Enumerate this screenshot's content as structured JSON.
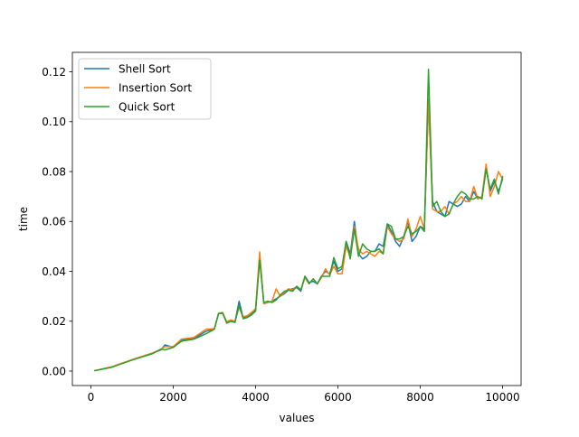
{
  "chart_data": {
    "type": "line",
    "title": "",
    "xlabel": "values",
    "ylabel": "time",
    "xlim": [
      -450,
      10450
    ],
    "ylim": [
      -0.0058,
      0.1278
    ],
    "xticks": [
      0,
      2000,
      4000,
      6000,
      8000,
      10000
    ],
    "xtick_labels": [
      "0",
      "2000",
      "4000",
      "6000",
      "8000",
      "10000"
    ],
    "yticks": [
      0.0,
      0.02,
      0.04,
      0.06,
      0.08,
      0.1,
      0.12
    ],
    "ytick_labels": [
      "0.00",
      "0.02",
      "0.04",
      "0.06",
      "0.08",
      "0.10",
      "0.12"
    ],
    "grid": false,
    "legend": "upper-left",
    "series": [
      {
        "name": "Shell Sort",
        "color": "#1f77b4",
        "x": [
          100,
          500,
          1000,
          1500,
          1700,
          1800,
          2000,
          2200,
          2500,
          2800,
          3000,
          3100,
          3200,
          3300,
          3400,
          3500,
          3600,
          3700,
          3800,
          3900,
          4000,
          4100,
          4200,
          4300,
          4400,
          4500,
          4600,
          4700,
          4800,
          4900,
          5000,
          5100,
          5200,
          5300,
          5400,
          5500,
          5600,
          5700,
          5800,
          5900,
          6000,
          6100,
          6200,
          6300,
          6400,
          6500,
          6600,
          6700,
          6800,
          6900,
          7000,
          7100,
          7200,
          7300,
          7400,
          7500,
          7600,
          7700,
          7800,
          7900,
          8000,
          8100,
          8200,
          8300,
          8400,
          8500,
          8600,
          8700,
          8800,
          8900,
          9000,
          9100,
          9200,
          9300,
          9400,
          9500,
          9600,
          9700,
          9800,
          9900,
          10000
        ],
        "values": [
          0.0002,
          0.0016,
          0.0045,
          0.0072,
          0.0085,
          0.0105,
          0.0095,
          0.0125,
          0.013,
          0.016,
          0.017,
          0.023,
          0.0232,
          0.0195,
          0.02,
          0.0198,
          0.028,
          0.0213,
          0.022,
          0.023,
          0.0245,
          0.046,
          0.027,
          0.0275,
          0.028,
          0.029,
          0.03,
          0.031,
          0.0325,
          0.033,
          0.0335,
          0.032,
          0.038,
          0.0355,
          0.036,
          0.035,
          0.038,
          0.04,
          0.039,
          0.044,
          0.04,
          0.041,
          0.052,
          0.047,
          0.06,
          0.047,
          0.045,
          0.046,
          0.048,
          0.048,
          0.051,
          0.05,
          0.059,
          0.056,
          0.052,
          0.05,
          0.054,
          0.06,
          0.052,
          0.054,
          0.058,
          0.057,
          0.108,
          0.068,
          0.064,
          0.063,
          0.062,
          0.068,
          0.067,
          0.066,
          0.067,
          0.07,
          0.068,
          0.072,
          0.069,
          0.07,
          0.082,
          0.072,
          0.076,
          0.072,
          0.077
        ]
      },
      {
        "name": "Insertion Sort",
        "color": "#ff7f0e",
        "x": [
          100,
          500,
          1000,
          1500,
          1700,
          1800,
          2000,
          2200,
          2500,
          2800,
          3000,
          3100,
          3200,
          3300,
          3400,
          3500,
          3600,
          3700,
          3800,
          3900,
          4000,
          4100,
          4200,
          4300,
          4400,
          4500,
          4600,
          4700,
          4800,
          4900,
          5000,
          5100,
          5200,
          5300,
          5400,
          5500,
          5600,
          5700,
          5800,
          5900,
          6000,
          6100,
          6200,
          6300,
          6400,
          6500,
          6600,
          6700,
          6800,
          6900,
          7000,
          7100,
          7200,
          7300,
          7400,
          7500,
          7600,
          7700,
          7800,
          7900,
          8000,
          8100,
          8200,
          8300,
          8400,
          8500,
          8600,
          8700,
          8800,
          8900,
          9000,
          9100,
          9200,
          9300,
          9400,
          9500,
          9600,
          9700,
          9800,
          9900,
          10000
        ],
        "values": [
          0.0002,
          0.0017,
          0.0046,
          0.0073,
          0.0087,
          0.0098,
          0.0098,
          0.0128,
          0.0135,
          0.0168,
          0.017,
          0.0232,
          0.0235,
          0.0198,
          0.0205,
          0.02,
          0.0255,
          0.0218,
          0.0222,
          0.0235,
          0.025,
          0.0478,
          0.027,
          0.0275,
          0.028,
          0.033,
          0.03,
          0.0315,
          0.033,
          0.0325,
          0.034,
          0.0325,
          0.0375,
          0.035,
          0.037,
          0.035,
          0.0375,
          0.041,
          0.0385,
          0.042,
          0.039,
          0.039,
          0.05,
          0.046,
          0.058,
          0.049,
          0.047,
          0.048,
          0.047,
          0.046,
          0.048,
          0.047,
          0.058,
          0.055,
          0.053,
          0.052,
          0.053,
          0.061,
          0.054,
          0.057,
          0.062,
          0.057,
          0.109,
          0.065,
          0.064,
          0.064,
          0.066,
          0.063,
          0.067,
          0.068,
          0.07,
          0.068,
          0.068,
          0.074,
          0.069,
          0.07,
          0.083,
          0.07,
          0.074,
          0.08,
          0.077
        ]
      },
      {
        "name": "Quick Sort",
        "color": "#2ca02c",
        "x": [
          100,
          500,
          1000,
          1500,
          1700,
          1800,
          2000,
          2200,
          2500,
          2800,
          3000,
          3100,
          3200,
          3300,
          3400,
          3500,
          3600,
          3700,
          3800,
          3900,
          4000,
          4100,
          4200,
          4300,
          4400,
          4500,
          4600,
          4700,
          4800,
          4900,
          5000,
          5100,
          5200,
          5300,
          5400,
          5500,
          5600,
          5700,
          5800,
          5900,
          6000,
          6100,
          6200,
          6300,
          6400,
          6500,
          6600,
          6700,
          6800,
          6900,
          7000,
          7100,
          7200,
          7300,
          7400,
          7500,
          7600,
          7700,
          7800,
          7900,
          8000,
          8100,
          8200,
          8300,
          8400,
          8500,
          8600,
          8700,
          8800,
          8900,
          9000,
          9100,
          9200,
          9300,
          9400,
          9500,
          9600,
          9700,
          9800,
          9900,
          10000
        ],
        "values": [
          0.0002,
          0.0015,
          0.0044,
          0.007,
          0.0088,
          0.0085,
          0.0095,
          0.012,
          0.0128,
          0.015,
          0.0168,
          0.023,
          0.0233,
          0.0192,
          0.02,
          0.0195,
          0.0265,
          0.021,
          0.0215,
          0.0225,
          0.024,
          0.0445,
          0.0275,
          0.028,
          0.0275,
          0.0285,
          0.0305,
          0.032,
          0.0325,
          0.032,
          0.034,
          0.0325,
          0.038,
          0.035,
          0.037,
          0.035,
          0.038,
          0.038,
          0.038,
          0.0455,
          0.041,
          0.042,
          0.052,
          0.045,
          0.057,
          0.046,
          0.051,
          0.049,
          0.048,
          0.048,
          0.049,
          0.047,
          0.059,
          0.058,
          0.053,
          0.053,
          0.054,
          0.058,
          0.055,
          0.056,
          0.058,
          0.056,
          0.121,
          0.066,
          0.068,
          0.064,
          0.062,
          0.063,
          0.067,
          0.07,
          0.072,
          0.071,
          0.069,
          0.069,
          0.07,
          0.069,
          0.081,
          0.073,
          0.077,
          0.071,
          0.078
        ]
      }
    ]
  }
}
